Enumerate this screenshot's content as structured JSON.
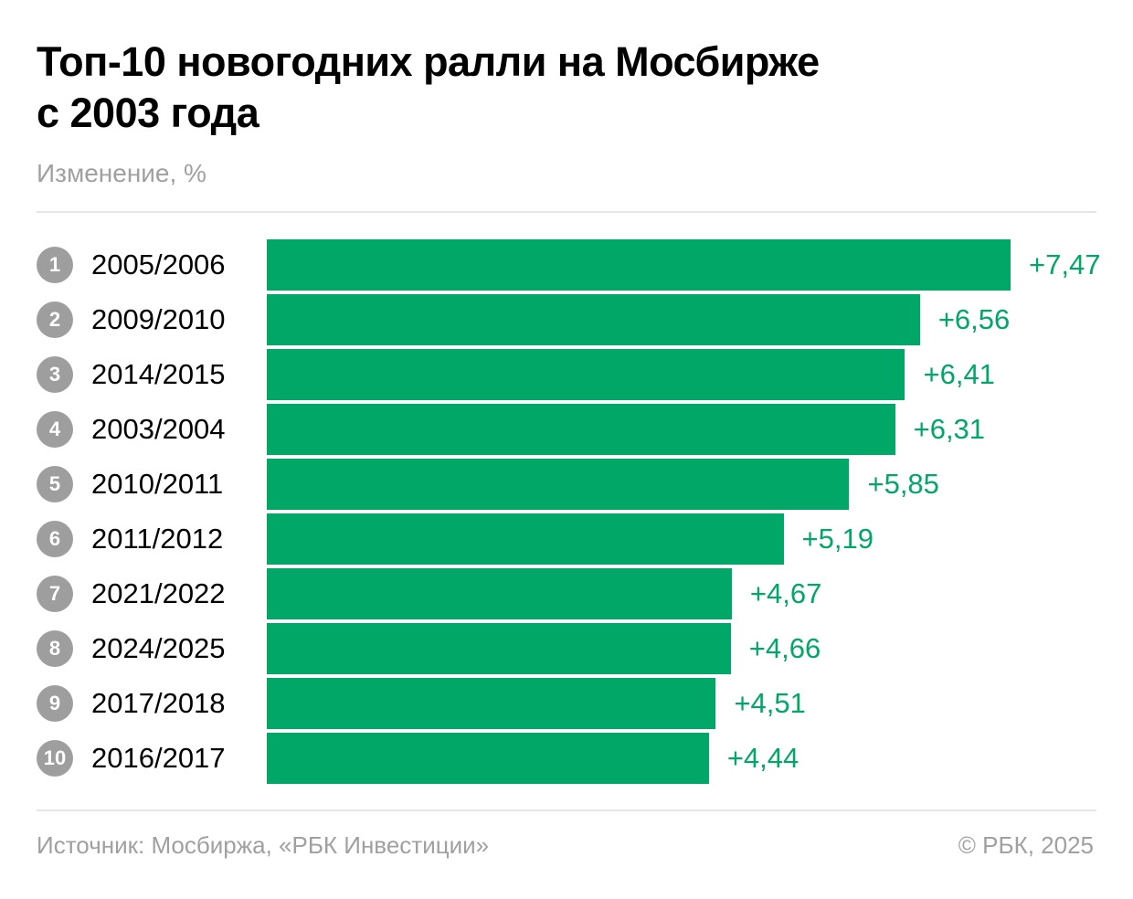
{
  "header": {
    "title_line1": "Топ-10 новогодних ралли на Мосбирже",
    "title_line2": "с 2003 года",
    "subtitle": "Изменение, %"
  },
  "footer": {
    "source": "Источник: Мосбиржа, «РБК Инвестиции»",
    "copyright": "© РБК, 2025"
  },
  "colors": {
    "bar": "#00a766",
    "value_text": "#00a766",
    "badge": "#9e9e9e"
  },
  "chart_data": {
    "type": "bar",
    "orientation": "horizontal",
    "title": "Топ-10 новогодних ралли на Мосбирже с 2003 года",
    "subtitle": "Изменение, %",
    "ranks": [
      "1",
      "2",
      "3",
      "4",
      "5",
      "6",
      "7",
      "8",
      "9",
      "10"
    ],
    "categories": [
      "2005/2006",
      "2009/2010",
      "2014/2015",
      "2003/2004",
      "2010/2011",
      "2011/2012",
      "2021/2022",
      "2024/2025",
      "2017/2018",
      "2016/2017"
    ],
    "values": [
      7.47,
      6.56,
      6.41,
      6.31,
      5.85,
      5.19,
      4.67,
      4.66,
      4.51,
      4.44
    ],
    "labels": [
      "+7,47",
      "+6,56",
      "+6,41",
      "+6,31",
      "+5,85",
      "+5,19",
      "+4,67",
      "+4,66",
      "+4,51",
      "+4,44"
    ],
    "xlim": [
      0,
      7.47
    ],
    "grid": false
  }
}
